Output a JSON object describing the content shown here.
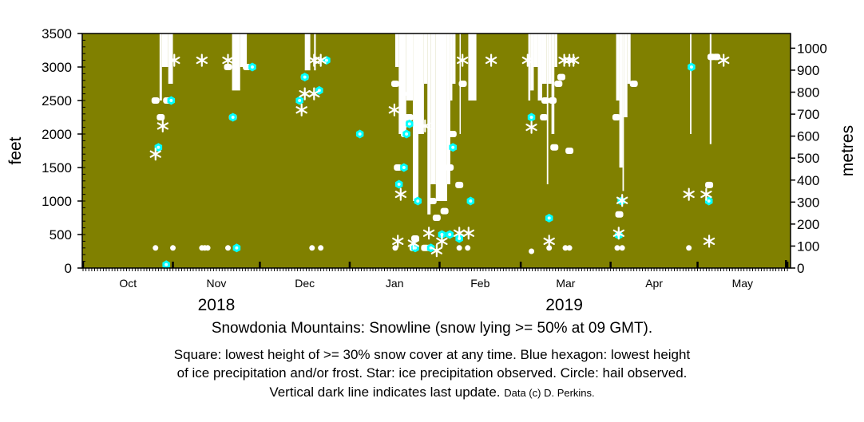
{
  "chart_data": {
    "type": "scatter",
    "title": "Snowdonia Mountains: Snowline (snow lying >= 50% at 09 GMT).",
    "caption": [
      "Square: lowest height of >= 30% snow cover at any time. Blue hexagon: lowest height",
      "of ice precipitation and/or frost. Star: ice precipitation observed. Circle: hail observed.",
      "Vertical dark line indicates last update."
    ],
    "credit": "Data (c) D. Perkins.",
    "ylabel_left": "feet",
    "ylabel_right": "metres",
    "x_units": "days since 2018-10-01",
    "xlim": [
      0,
      243
    ],
    "ylim_feet": [
      0,
      3500
    ],
    "ylim_metres": [
      0,
      1067
    ],
    "yticks_feet": [
      "0",
      "500",
      "1000",
      "1500",
      "2000",
      "2500",
      "3000",
      "3500"
    ],
    "yticks_metres": [
      "0",
      "100",
      "200",
      "300",
      "400",
      "500",
      "600",
      "700",
      "800",
      "900",
      "1000"
    ],
    "months": [
      {
        "label": "Oct",
        "start": 0,
        "days": 31
      },
      {
        "label": "Nov",
        "start": 31,
        "days": 30
      },
      {
        "label": "Dec",
        "start": 61,
        "days": 31
      },
      {
        "label": "Jan",
        "start": 92,
        "days": 31
      },
      {
        "label": "Feb",
        "start": 123,
        "days": 28
      },
      {
        "label": "Mar",
        "start": 151,
        "days": 31
      },
      {
        "label": "Apr",
        "start": 182,
        "days": 30
      },
      {
        "label": "May",
        "start": 212,
        "days": 31
      }
    ],
    "years": [
      {
        "label": "2018",
        "day": 46
      },
      {
        "label": "2019",
        "day": 166
      }
    ],
    "colors": {
      "background": "#808000",
      "snow": "#ffffff",
      "hexagon": "#00ffff"
    },
    "last_update_day": 242.5,
    "snowline_bars": [
      [
        26.4,
        27.2,
        2500
      ],
      [
        27.2,
        29.4,
        3000
      ],
      [
        29.4,
        31,
        2750
      ],
      [
        51.4,
        54.2,
        2650
      ],
      [
        54.2,
        56.5,
        3000
      ],
      [
        76.5,
        78.4,
        2950
      ],
      [
        79.7,
        80.3,
        2950
      ],
      [
        107.7,
        108.9,
        3000
      ],
      [
        108.9,
        111.5,
        2000
      ],
      [
        111.5,
        113.8,
        2500
      ],
      [
        113.8,
        115.7,
        1000
      ],
      [
        115.7,
        117.6,
        2000
      ],
      [
        117.6,
        118.8,
        2750
      ],
      [
        118.8,
        119.9,
        800
      ],
      [
        119.9,
        121.7,
        1250
      ],
      [
        121.7,
        125.6,
        1000
      ],
      [
        125.6,
        126.7,
        1250
      ],
      [
        126.7,
        127.4,
        2500
      ],
      [
        127.4,
        128.5,
        2750
      ],
      [
        129.9,
        130.3,
        2000
      ],
      [
        132.9,
        135.7,
        2500
      ],
      [
        153.6,
        154.3,
        2500
      ],
      [
        154.3,
        155.5,
        2650
      ],
      [
        155.5,
        156.9,
        3000
      ],
      [
        156.9,
        158.4,
        2500
      ],
      [
        158.4,
        160,
        2750
      ],
      [
        160,
        160.5,
        1250
      ],
      [
        160.5,
        161.6,
        2750
      ],
      [
        161.6,
        162.6,
        2000
      ],
      [
        162.6,
        163.6,
        3000
      ],
      [
        183.9,
        185,
        2500
      ],
      [
        185,
        186.1,
        1500
      ],
      [
        186.1,
        186.6,
        1150
      ],
      [
        186.6,
        187.8,
        2250
      ],
      [
        187.8,
        188.9,
        2750
      ],
      [
        209.4,
        209.9,
        2000
      ],
      [
        216.2,
        216.8,
        1850
      ]
    ],
    "squares": [
      [
        25,
        2500
      ],
      [
        29,
        2500
      ],
      [
        26.8,
        2250
      ],
      [
        50,
        3000
      ],
      [
        56.5,
        3000
      ],
      [
        51.7,
        2250
      ],
      [
        76.5,
        2850
      ],
      [
        107.7,
        2750
      ],
      [
        131,
        2750
      ],
      [
        111,
        2250
      ],
      [
        112.6,
        2250
      ],
      [
        111.7,
        2150
      ],
      [
        111,
        2000
      ],
      [
        127.5,
        2000
      ],
      [
        108.6,
        1500
      ],
      [
        126.5,
        1500
      ],
      [
        129.8,
        1240
      ],
      [
        120.6,
        1000
      ],
      [
        124.7,
        850
      ],
      [
        122,
        750
      ],
      [
        114.6,
        440
      ],
      [
        114,
        300
      ],
      [
        118,
        300
      ],
      [
        119.6,
        300
      ],
      [
        165,
        2850
      ],
      [
        164,
        2750
      ],
      [
        159.5,
        2500
      ],
      [
        162,
        2500
      ],
      [
        159,
        2250
      ],
      [
        162.6,
        1800
      ],
      [
        167.8,
        1750
      ],
      [
        184,
        2250
      ],
      [
        190,
        2750
      ],
      [
        216,
        1240
      ],
      [
        185,
        800
      ],
      [
        216.8,
        3150
      ],
      [
        218.5,
        3150
      ]
    ],
    "hexagons": [
      [
        30.4,
        2500
      ],
      [
        26,
        1800
      ],
      [
        58.4,
        3000
      ],
      [
        84,
        3100
      ],
      [
        81.5,
        2650
      ],
      [
        74.7,
        2500
      ],
      [
        51.7,
        2250
      ],
      [
        53,
        300
      ],
      [
        28.7,
        50
      ],
      [
        76.5,
        2850
      ],
      [
        95.5,
        2000
      ],
      [
        112.6,
        2150
      ],
      [
        111.6,
        2000
      ],
      [
        110.7,
        1500
      ],
      [
        109,
        1250
      ],
      [
        115.5,
        1000
      ],
      [
        127.6,
        1800
      ],
      [
        133.7,
        1000
      ],
      [
        123.8,
        500
      ],
      [
        126.5,
        500
      ],
      [
        120,
        300
      ],
      [
        114.6,
        300
      ],
      [
        129.8,
        440
      ],
      [
        154.7,
        2250
      ],
      [
        160.8,
        745
      ],
      [
        185.7,
        1000
      ],
      [
        184.8,
        490
      ],
      [
        209.9,
        3000
      ],
      [
        215.9,
        1000
      ]
    ],
    "stars": [
      [
        31.5,
        3100
      ],
      [
        41,
        3100
      ],
      [
        50,
        3100
      ],
      [
        27.5,
        2120
      ],
      [
        25,
        1700
      ],
      [
        76.5,
        2600
      ],
      [
        79.7,
        2600
      ],
      [
        75.4,
        2360
      ],
      [
        79.7,
        3100
      ],
      [
        82,
        3100
      ],
      [
        130.9,
        3100
      ],
      [
        140.8,
        3100
      ],
      [
        153.4,
        3100
      ],
      [
        166,
        3100
      ],
      [
        167.8,
        3100
      ],
      [
        169.2,
        3100
      ],
      [
        111,
        2600
      ],
      [
        107.4,
        2360
      ],
      [
        118,
        2120
      ],
      [
        109.6,
        1100
      ],
      [
        108.6,
        400
      ],
      [
        114,
        370
      ],
      [
        119.3,
        520
      ],
      [
        123.8,
        400
      ],
      [
        122,
        260
      ],
      [
        129.8,
        520
      ],
      [
        133,
        520
      ],
      [
        154.7,
        2100
      ],
      [
        160.8,
        400
      ],
      [
        186,
        1010
      ],
      [
        184.8,
        520
      ],
      [
        209,
        1100
      ],
      [
        215,
        1100
      ],
      [
        221,
        3100
      ],
      [
        216,
        400
      ]
    ],
    "circles": [
      [
        25,
        300
      ],
      [
        31,
        300
      ],
      [
        41,
        300
      ],
      [
        42,
        300
      ],
      [
        43,
        300
      ],
      [
        50,
        300
      ],
      [
        79,
        300
      ],
      [
        82,
        300
      ],
      [
        107.7,
        300
      ],
      [
        129.8,
        300
      ],
      [
        132.7,
        300
      ],
      [
        154.7,
        250
      ],
      [
        160.8,
        300
      ],
      [
        166.4,
        300
      ],
      [
        167.8,
        300
      ],
      [
        184.3,
        300
      ],
      [
        186,
        300
      ],
      [
        209,
        300
      ]
    ]
  }
}
